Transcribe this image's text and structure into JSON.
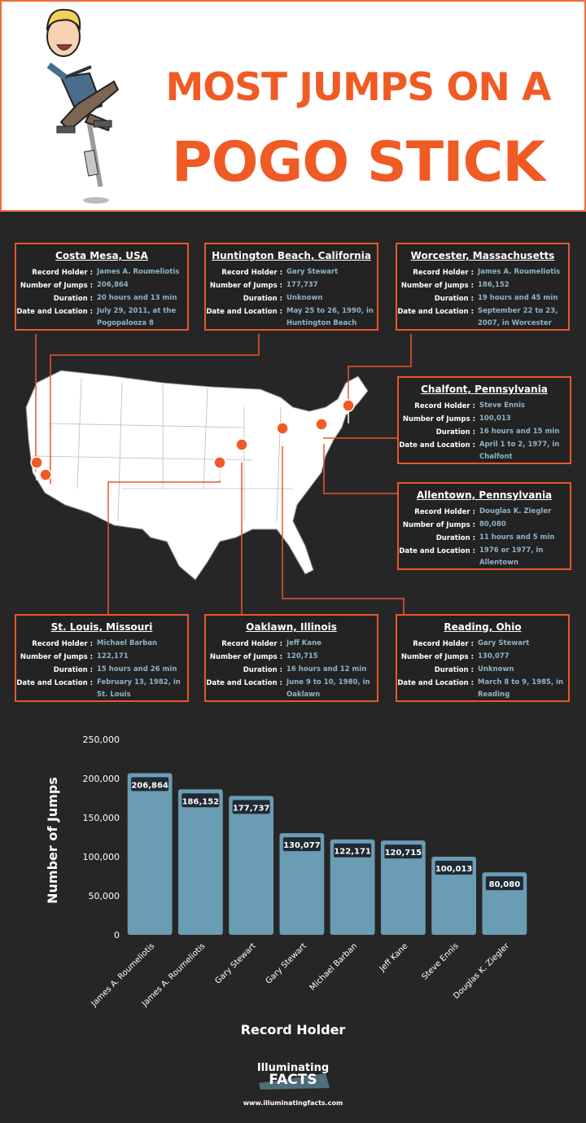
{
  "header": {
    "title_line1": "MOST JUMPS ON A",
    "title_line2": "POGO STICK"
  },
  "locations": [
    {
      "title": "Costa Mesa, USA",
      "rows": [
        {
          "label": "Record Holder :",
          "value": "James A. Roumeliotis"
        },
        {
          "label": "Number of Jumps :",
          "value": "206,864"
        },
        {
          "label": "Duration :",
          "value": "20 hours and 13 min"
        },
        {
          "label": "Date and Location :",
          "value": "July 29, 2011, at the Pogopalooza 8"
        }
      ]
    },
    {
      "title": "Huntington Beach, California",
      "rows": [
        {
          "label": "Record Holder :",
          "value": "Gary Stewart"
        },
        {
          "label": "Number of Jumps :",
          "value": "177,737"
        },
        {
          "label": "Duration :",
          "value": "Unknown"
        },
        {
          "label": "Date and Location :",
          "value": "May 25 to 26, 1990, in Huntington Beach"
        }
      ]
    },
    {
      "title": "Worcester, Massachusetts",
      "rows": [
        {
          "label": "Record Holder :",
          "value": "James A. Roumeliotis"
        },
        {
          "label": "Number of Jumps :",
          "value": "186,152"
        },
        {
          "label": "Duration :",
          "value": "19 hours and 45 min"
        },
        {
          "label": "Date and Location :",
          "value": "September 22 to 23, 2007, in Worcester"
        }
      ]
    },
    {
      "title": "Chalfont, Pennsylvania",
      "rows": [
        {
          "label": "Record Holder :",
          "value": "Steve Ennis"
        },
        {
          "label": "Number of Jumps :",
          "value": "100,013"
        },
        {
          "label": "Duration :",
          "value": "16 hours and 15 min"
        },
        {
          "label": "Date and Location :",
          "value": "April 1 to 2, 1977, in Chalfont"
        }
      ]
    },
    {
      "title": "Allentown, Pennsylvania",
      "rows": [
        {
          "label": "Record Holder :",
          "value": "Douglas K. Ziegler"
        },
        {
          "label": "Number of Jumps :",
          "value": "80,080"
        },
        {
          "label": "Duration :",
          "value": "11 hours and 5 min"
        },
        {
          "label": "Date and Location :",
          "value": "1976 or 1977, in Allentown"
        }
      ]
    },
    {
      "title": "St. Louis, Missouri",
      "rows": [
        {
          "label": "Record Holder :",
          "value": "Michael Barban"
        },
        {
          "label": "Number of Jumps :",
          "value": "122,171"
        },
        {
          "label": "Duration :",
          "value": "15 hours and 26 min"
        },
        {
          "label": "Date and Location :",
          "value": "February 13, 1982, in St. Louis"
        }
      ]
    },
    {
      "title": "Oaklawn, Illinois",
      "rows": [
        {
          "label": "Record Holder :",
          "value": "Jeff Kane"
        },
        {
          "label": "Number of Jumps :",
          "value": "120,715"
        },
        {
          "label": "Duration :",
          "value": "16 hours and 12 min"
        },
        {
          "label": "Date and Location :",
          "value": "June 9 to 10, 1980, in Oaklawn"
        }
      ]
    },
    {
      "title": "Reading, Ohio",
      "rows": [
        {
          "label": "Record Holder :",
          "value": "Gary Stewart"
        },
        {
          "label": "Number of Jumps :",
          "value": "130,077"
        },
        {
          "label": "Duration :",
          "value": "Unknown"
        },
        {
          "label": "Date and Location :",
          "value": "March 8 to 9, 1985, in Reading"
        }
      ]
    }
  ],
  "chart_data": {
    "type": "bar",
    "x_label": "Record Holder",
    "y_label": "Number of Jumps",
    "categories": [
      "James A. Roumeliotis",
      "James A. Roumeliotis",
      "Gary Stewart",
      "Gary Stewart",
      "Michael Barban",
      "Jeff Kane",
      "Steve Ennis",
      "Douglas K. Ziegler"
    ],
    "values": [
      206864,
      186152,
      177737,
      130077,
      122171,
      120715,
      100013,
      80080
    ],
    "value_labels": [
      "206,864",
      "186,152",
      "177,737",
      "130,077",
      "122,171",
      "120,715",
      "100,013",
      "80,080"
    ],
    "color": "#6a9cb4",
    "ylim": [
      0,
      250000
    ],
    "yticks": [
      0,
      {
        "value": 50000,
        "label": "50,000"
      },
      {
        "value": 100000,
        "label": "100,000"
      },
      {
        "value": 150000,
        "label": "150,000"
      },
      {
        "value": 200000,
        "label": "200,000"
      },
      {
        "value": 250000,
        "label": "250,000"
      }
    ],
    "grid": false
  },
  "footer": {
    "brand_top": "Illuminating",
    "brand_bottom": "FACTS",
    "url": "www.illuminatingfacts.com"
  }
}
